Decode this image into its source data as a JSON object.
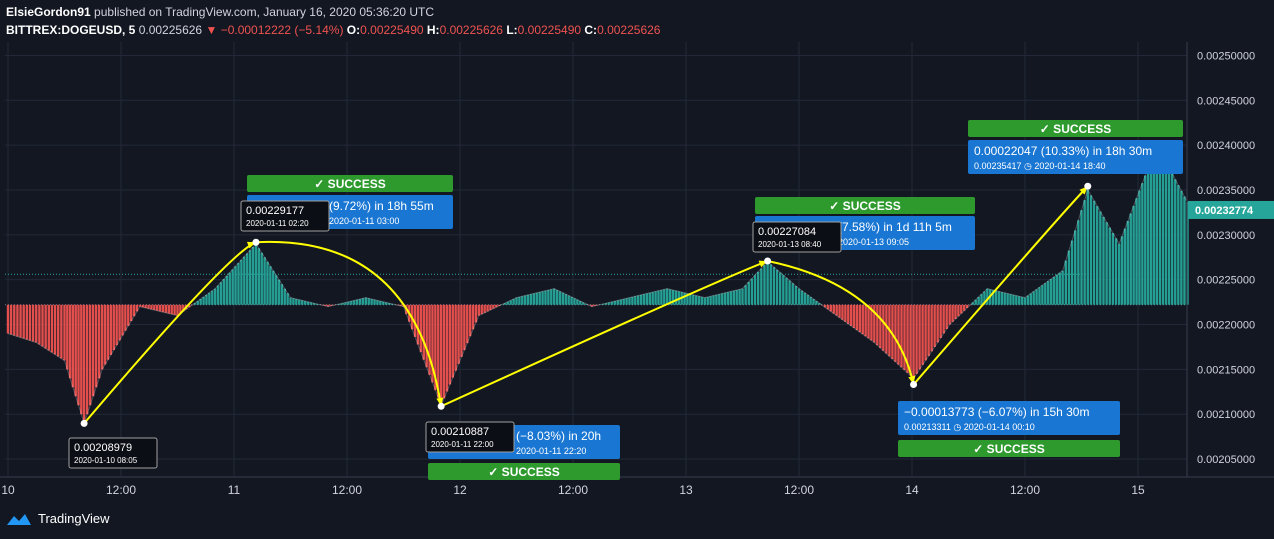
{
  "header": {
    "author": "ElsieGordon91",
    "published": "published on TradingView.com, January 16, 2020 05:36:20 UTC",
    "symbol": "BITTREX:DOGEUSD, 5",
    "price": "0.00225626",
    "change": "−0.00012222 (−5.14%)",
    "o_label": "O:",
    "o_value": "0.00225490",
    "h_label": "H:",
    "h_value": "0.00225626",
    "l_label": "L:",
    "l_value": "0.00225490",
    "c_label": "C:",
    "c_value": "0.00225626"
  },
  "footer": {
    "brand": "TradingView"
  },
  "colors": {
    "up": "#26a69a",
    "down": "#ef5350",
    "background": "#131722",
    "arrow": "#ffff00",
    "success": "#2e9a2e",
    "label": "#1976d2"
  },
  "chart_data": {
    "type": "line",
    "symbol": "BITTREX:DOGEUSD",
    "interval": "5",
    "ylim": [
      0.00203,
      0.002515
    ],
    "y_ticks": [
      "0.00250000",
      "0.00245000",
      "0.00240000",
      "0.00235000",
      "0.00230000",
      "0.00225000",
      "0.00220000",
      "0.00215000",
      "0.00210000",
      "0.00205000"
    ],
    "x_ticks": [
      "10",
      "12:00",
      "11",
      "12:00",
      "12",
      "12:00",
      "13",
      "12:00",
      "14",
      "12:00",
      "15"
    ],
    "current_price_label": "0.00232774",
    "baseline": 0.002222,
    "series": [
      {
        "x": [
          "2020-01-10 00:00",
          "2020-01-10 03:00",
          "2020-01-10 06:00",
          "2020-01-10 08:05",
          "2020-01-10 10:00",
          "2020-01-10 14:00",
          "2020-01-10 18:00",
          "2020-01-10 22:00",
          "2020-01-11 02:20",
          "2020-01-11 06:00",
          "2020-01-11 10:00",
          "2020-01-11 14:00",
          "2020-01-11 18:00",
          "2020-01-11 22:00",
          "2020-01-12 02:00",
          "2020-01-12 06:00",
          "2020-01-12 10:00",
          "2020-01-12 14:00",
          "2020-01-12 18:00",
          "2020-01-12 22:00",
          "2020-01-13 02:00",
          "2020-01-13 06:00",
          "2020-01-13 08:40",
          "2020-01-13 12:00",
          "2020-01-13 16:00",
          "2020-01-13 20:00",
          "2020-01-14 00:10",
          "2020-01-14 04:00",
          "2020-01-14 08:00",
          "2020-01-14 12:00",
          "2020-01-14 16:00",
          "2020-01-14 18:40",
          "2020-01-14 22:00",
          "2020-01-15 02:00",
          "2020-01-15 05:35"
        ],
        "values": [
          0.00219,
          0.00218,
          0.00216,
          0.00209,
          0.00215,
          0.00222,
          0.00221,
          0.00224,
          0.00229,
          0.00223,
          0.00222,
          0.00223,
          0.00222,
          0.00211,
          0.00221,
          0.00223,
          0.00224,
          0.00222,
          0.00223,
          0.00224,
          0.00223,
          0.00224,
          0.00227,
          0.00224,
          0.00221,
          0.00218,
          0.00214,
          0.0022,
          0.00224,
          0.00223,
          0.00226,
          0.00235,
          0.00229,
          0.0024,
          0.00233
        ]
      }
    ],
    "annotations": [
      {
        "label": "0.00208979",
        "time": "2020-01-10 08:05"
      },
      {
        "label": "0.00229177",
        "time": "2020-01-11 02:20",
        "result": "(9.72%) in 18h 55m",
        "end": "2020-01-11  03:00",
        "status": "SUCCESS"
      },
      {
        "label": "0.00210887",
        "time": "2020-01-11 22:00",
        "result": "(−8.03%) in 20h",
        "end": "2020-01-11  22:20",
        "status": "SUCCESS"
      },
      {
        "label": "0.00227084",
        "time": "2020-01-13 08:40",
        "result": "(7.58%) in 1d 11h 5m",
        "end": "2020-01-13  09:05",
        "status": "SUCCESS"
      },
      {
        "result": "−0.00013773 (−6.07%) in 15h 30m",
        "price": "0.00213311",
        "end": "2020-01-14  00:10",
        "status": "SUCCESS"
      },
      {
        "result": "0.00022047 (10.33%) in 18h 30m",
        "price": "0.00235417",
        "end": "2020-01-14  18:40",
        "status": "SUCCESS"
      }
    ]
  }
}
